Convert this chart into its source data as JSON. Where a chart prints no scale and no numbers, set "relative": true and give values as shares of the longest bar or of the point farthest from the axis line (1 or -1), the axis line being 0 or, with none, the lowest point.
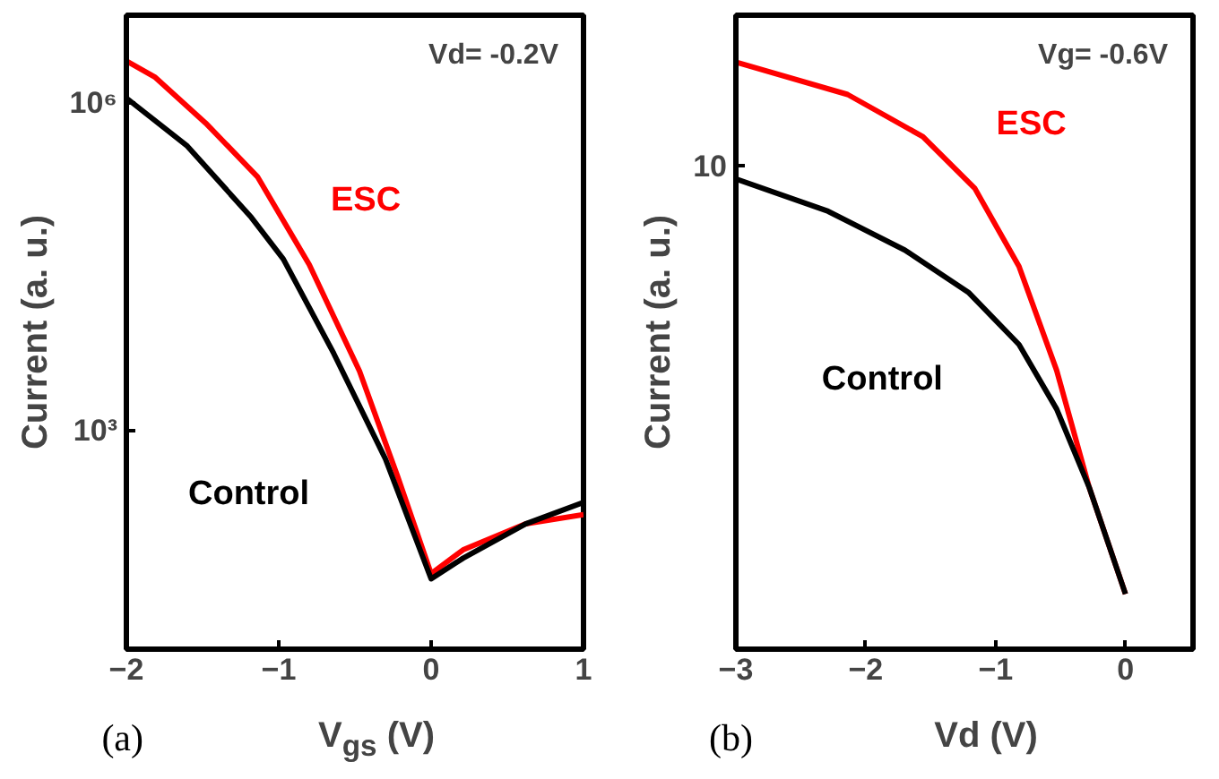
{
  "chart_data": [
    {
      "type": "line",
      "xlabel": "V$_{gs}$ (V)",
      "ylabel": "Current (a. u.)",
      "log": "y",
      "xlim": [
        -2,
        1
      ],
      "ylim": [
        10,
        6300000
      ],
      "xticks": [
        -2,
        -1,
        0,
        1
      ],
      "yticks": [
        {
          "value": 1000,
          "label": "10³"
        },
        {
          "value": 1000000,
          "label": "10⁶"
        }
      ],
      "grid": false,
      "legend": false,
      "series": [
        {
          "name": "ESC",
          "color": "#ff0000",
          "x": [
            -2,
            -1.81,
            -1.48,
            -1.14,
            -0.8,
            -0.47,
            -0.22,
            0,
            0.21,
            0.62,
            1
          ],
          "values": [
            2400000,
            1700000,
            650000,
            210000,
            33000,
            3500,
            380,
            49,
            81,
            140,
            170
          ]
        },
        {
          "name": "Control",
          "color": "#000000",
          "x": [
            -2,
            -1.6,
            -1.18,
            -0.97,
            -0.64,
            -0.3,
            0,
            0.21,
            0.62,
            1
          ],
          "values": [
            1100000,
            400000,
            89000,
            37000,
            5100,
            550,
            44,
            68,
            140,
            220
          ]
        }
      ],
      "annotations": [
        "Vd= -0.2V",
        "(a)"
      ]
    },
    {
      "type": "line",
      "xlabel": "Vd (V)",
      "ylabel": "Current (a. u.)",
      "relative": true,
      "xlim": [
        -3,
        0.52
      ],
      "xticks": [
        -3,
        -2,
        -1,
        0
      ],
      "grid": false,
      "legend": false,
      "series": [
        {
          "name": "ESC",
          "color": "#ff0000",
          "x": [
            -3,
            -2.14,
            -1.56,
            -1.16,
            -0.82,
            -0.53,
            -0.28,
            0
          ],
          "values": [
            1.0,
            0.945,
            0.873,
            0.785,
            0.652,
            0.475,
            0.276,
            0.094
          ]
        },
        {
          "name": "Control",
          "color": "#000000",
          "x": [
            -3,
            -2.29,
            -1.7,
            -1.21,
            -0.82,
            -0.53,
            -0.28,
            0
          ],
          "values": [
            0.801,
            0.746,
            0.68,
            0.608,
            0.519,
            0.409,
            0.276,
            0.094
          ]
        }
      ],
      "annotations": [
        "Vg= -0.6V",
        "10",
        "(b)"
      ]
    }
  ]
}
